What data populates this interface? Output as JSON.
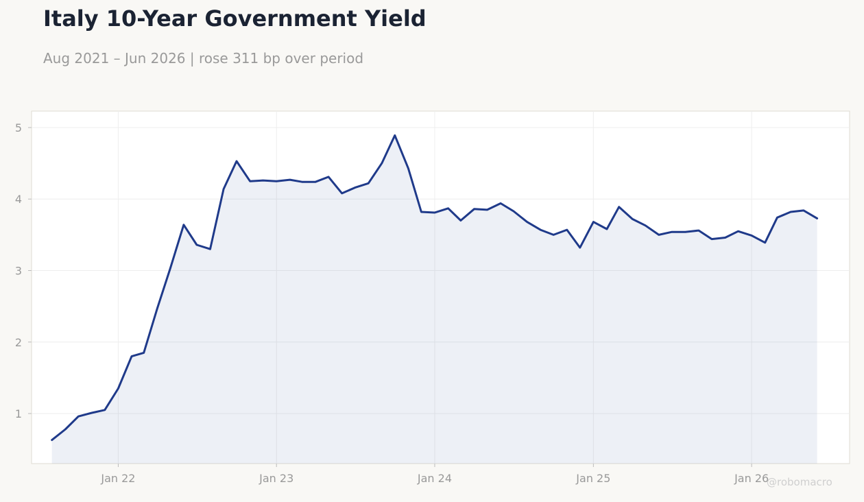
{
  "header": {
    "title": "Italy 10-Year Government Yield",
    "subtitle": "Aug 2021 – Jun 2026 | rose 311 bp over period"
  },
  "watermark": "@robomacro",
  "colors": {
    "line": "#1f3a8a",
    "fill": "#1f3a8a",
    "background": "#f9f8f5",
    "plot_background": "#ffffff",
    "grid": "#eeeeee",
    "tick_text": "#999999",
    "title": "#1b2333"
  },
  "chart_data": {
    "type": "area",
    "title": "Italy 10-Year Government Yield",
    "subtitle": "Aug 2021 – Jun 2026 | rose 311 bp over period",
    "xlabel": "",
    "ylabel": "",
    "ylim": [
      0.3,
      5.23
    ],
    "xlim": [
      "2021-06-15",
      "2026-08-15"
    ],
    "y_ticks": [
      1,
      2,
      3,
      4,
      5
    ],
    "x_ticks": [
      {
        "date": "2022-01-01",
        "label": "Jan 22"
      },
      {
        "date": "2023-01-01",
        "label": "Jan 23"
      },
      {
        "date": "2024-01-01",
        "label": "Jan 24"
      },
      {
        "date": "2025-01-01",
        "label": "Jan 25"
      },
      {
        "date": "2026-01-01",
        "label": "Jan 26"
      }
    ],
    "grid": true,
    "legend": "none",
    "series": [
      {
        "x": [
          "2021-08-01",
          "2021-09-01",
          "2021-10-01",
          "2021-11-01",
          "2021-12-01",
          "2022-01-01",
          "2022-02-01",
          "2022-03-01",
          "2022-04-01",
          "2022-05-01",
          "2022-06-01",
          "2022-07-01",
          "2022-08-01",
          "2022-09-01",
          "2022-10-01",
          "2022-11-01",
          "2022-12-01",
          "2023-01-01",
          "2023-02-01",
          "2023-03-01",
          "2023-04-01",
          "2023-05-01",
          "2023-06-01",
          "2023-07-01",
          "2023-08-01",
          "2023-09-01",
          "2023-10-01",
          "2023-11-01",
          "2023-12-01",
          "2024-01-01",
          "2024-02-01",
          "2024-03-01",
          "2024-04-01",
          "2024-05-01",
          "2024-06-01",
          "2024-07-01",
          "2024-08-01",
          "2024-09-01",
          "2024-10-01",
          "2024-11-01",
          "2024-12-01",
          "2025-01-01",
          "2025-02-01",
          "2025-03-01",
          "2025-04-01",
          "2025-05-01",
          "2025-06-01",
          "2025-07-01",
          "2025-08-01",
          "2025-09-01",
          "2025-10-01",
          "2025-11-01",
          "2025-12-01",
          "2026-01-01",
          "2026-02-01",
          "2026-03-01",
          "2026-04-01",
          "2026-05-01",
          "2026-06-01"
        ],
        "y": [
          0.63,
          0.78,
          0.96,
          1.01,
          1.05,
          1.35,
          1.8,
          1.85,
          2.47,
          3.03,
          3.64,
          3.36,
          3.3,
          4.14,
          4.53,
          4.25,
          4.26,
          4.25,
          4.27,
          4.24,
          4.24,
          4.31,
          4.08,
          4.16,
          4.22,
          4.5,
          4.89,
          4.43,
          3.82,
          3.81,
          3.87,
          3.7,
          3.86,
          3.85,
          3.94,
          3.83,
          3.68,
          3.57,
          3.5,
          3.57,
          3.32,
          3.68,
          3.58,
          3.89,
          3.72,
          3.63,
          3.5,
          3.54,
          3.54,
          3.56,
          3.44,
          3.46,
          3.55,
          3.49,
          3.39,
          3.74,
          3.82,
          3.84,
          3.73
        ]
      }
    ]
  }
}
